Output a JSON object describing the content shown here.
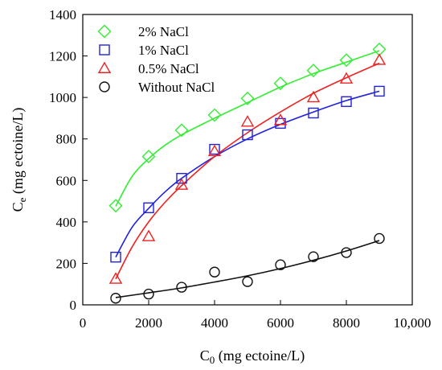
{
  "chart_data": {
    "type": "scatter",
    "xlabel": "C",
    "xlabel_sub": "0",
    "xlabel_unit": " (mg ectoine/L)",
    "ylabel": "C",
    "ylabel_sub": "e",
    "ylabel_unit": " (mg ectoine/L)",
    "xlim": [
      0,
      10000
    ],
    "ylim": [
      0,
      1400
    ],
    "xticks": [
      0,
      2000,
      4000,
      6000,
      8000,
      10000
    ],
    "xtick_labels": [
      "0",
      "2000",
      "4000",
      "6000",
      "8000",
      "10,000"
    ],
    "yticks": [
      0,
      200,
      400,
      600,
      800,
      1000,
      1200,
      1400
    ],
    "ytick_labels": [
      "0",
      "200",
      "400",
      "600",
      "800",
      "1000",
      "1200",
      "1400"
    ],
    "grid": false,
    "legend_position": "top-left",
    "series": [
      {
        "name": "2% NaCl",
        "marker": "diamond",
        "color": "#33ee33",
        "line_color": "#33ee33",
        "x": [
          1000,
          2000,
          3000,
          4000,
          5000,
          6000,
          7000,
          8000,
          9000
        ],
        "y": [
          478,
          715,
          842,
          915,
          995,
          1068,
          1130,
          1180,
          1232
        ],
        "fit": [
          [
            1000,
            475
          ],
          [
            1500,
            620
          ],
          [
            2000,
            705
          ],
          [
            2500,
            770
          ],
          [
            3000,
            820
          ],
          [
            4000,
            900
          ],
          [
            5000,
            975
          ],
          [
            6000,
            1050
          ],
          [
            7000,
            1115
          ],
          [
            8000,
            1170
          ],
          [
            9000,
            1225
          ]
        ]
      },
      {
        "name": "1% NaCl",
        "marker": "square",
        "color": "#2222dd",
        "line_color": "#2222dd",
        "x": [
          1000,
          2000,
          3000,
          4000,
          5000,
          6000,
          7000,
          8000,
          9000
        ],
        "y": [
          230,
          468,
          610,
          750,
          820,
          875,
          925,
          980,
          1030
        ],
        "fit": [
          [
            1000,
            230
          ],
          [
            1500,
            375
          ],
          [
            2000,
            465
          ],
          [
            2500,
            545
          ],
          [
            3000,
            610
          ],
          [
            4000,
            715
          ],
          [
            5000,
            800
          ],
          [
            6000,
            870
          ],
          [
            7000,
            930
          ],
          [
            8000,
            985
          ],
          [
            9000,
            1030
          ]
        ]
      },
      {
        "name": "0.5% NaCl",
        "marker": "triangle",
        "color": "#ee2222",
        "line_color": "#ee2222",
        "x": [
          1000,
          2000,
          3000,
          4000,
          5000,
          6000,
          7000,
          8000,
          9000
        ],
        "y": [
          125,
          330,
          578,
          740,
          882,
          890,
          1000,
          1090,
          1180
        ],
        "fit": [
          [
            1000,
            125
          ],
          [
            1500,
            280
          ],
          [
            2000,
            400
          ],
          [
            2500,
            495
          ],
          [
            3000,
            575
          ],
          [
            4000,
            715
          ],
          [
            5000,
            830
          ],
          [
            6000,
            930
          ],
          [
            7000,
            1020
          ],
          [
            8000,
            1095
          ],
          [
            9000,
            1165
          ]
        ]
      },
      {
        "name": "Without NaCl",
        "marker": "circle",
        "color": "#111111",
        "line_color": "#111111",
        "x": [
          1000,
          2000,
          3000,
          4000,
          5000,
          6000,
          7000,
          8000,
          9000
        ],
        "y": [
          32,
          52,
          85,
          158,
          112,
          193,
          232,
          252,
          320
        ],
        "fit": [
          [
            1000,
            35
          ],
          [
            2000,
            58
          ],
          [
            3000,
            82
          ],
          [
            4000,
            110
          ],
          [
            5000,
            140
          ],
          [
            6000,
            175
          ],
          [
            7000,
            215
          ],
          [
            8000,
            260
          ],
          [
            9000,
            310
          ]
        ]
      }
    ]
  }
}
